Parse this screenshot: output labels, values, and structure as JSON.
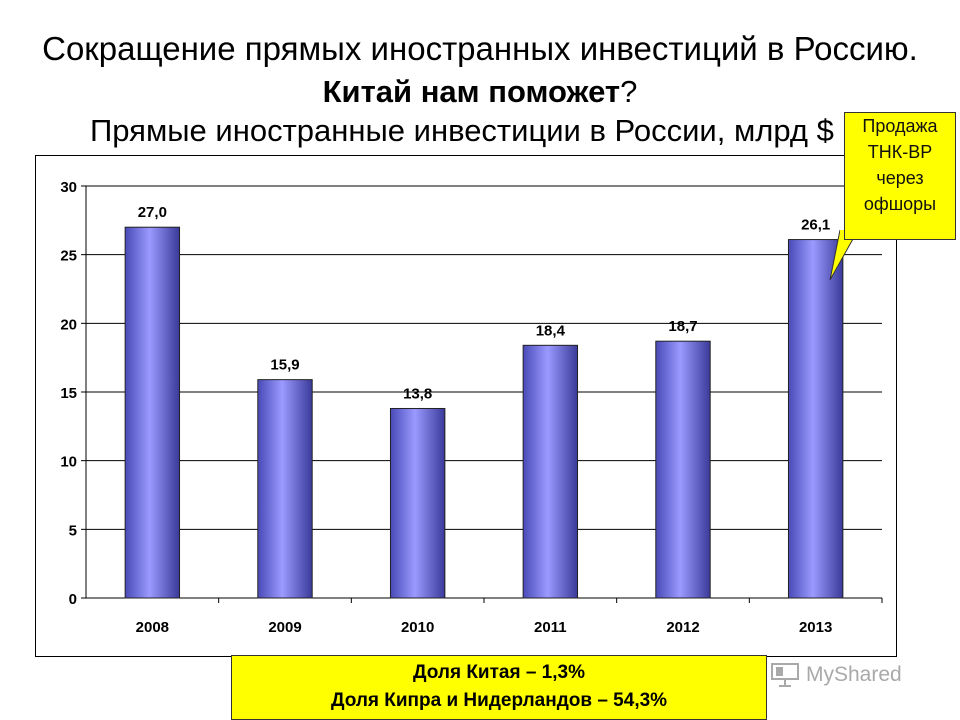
{
  "title": {
    "line1": "Сокращение прямых иностранных инвестиций в Россию.",
    "line2_bold": "Китай нам поможет",
    "line2_tail": "?",
    "line3": "Прямые иностранные инвестиции в России, млрд $"
  },
  "callout": {
    "lines": [
      "Продажа",
      "ТНК-ВР",
      "через",
      "офшоры"
    ]
  },
  "info_box": {
    "line1": "Доля Китая – 1,3%",
    "line2": "Доля Кипра и Нидерландов – 54,3%"
  },
  "watermark": {
    "text": "MyShared",
    "icon": "presentation-icon"
  },
  "chart_data": {
    "type": "bar",
    "categories": [
      "2008",
      "2009",
      "2010",
      "2011",
      "2012",
      "2013"
    ],
    "values": [
      27.0,
      15.9,
      13.8,
      18.4,
      18.7,
      26.1
    ],
    "data_labels": [
      "27,0",
      "15,9",
      "13,8",
      "18,4",
      "18,7",
      "26,1"
    ],
    "yticks": [
      "0",
      "5",
      "10",
      "15",
      "20",
      "25",
      "30"
    ],
    "ylim": [
      0,
      30
    ],
    "grid": true,
    "legend": "none",
    "bar_color": "#8080f0"
  }
}
